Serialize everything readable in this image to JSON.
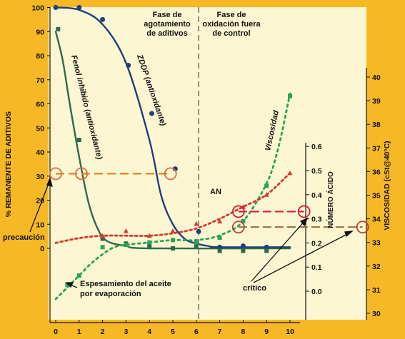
{
  "chart_data": {
    "type": "scatter",
    "x": {
      "ticks": [
        0,
        1,
        2,
        3,
        4,
        5,
        6,
        7,
        8,
        9,
        10
      ],
      "range": [
        0,
        10.5
      ]
    },
    "y_left": {
      "title": "% REMANENTE DE ADITIVOS",
      "ticks": [
        0,
        10,
        20,
        30,
        40,
        50,
        60,
        70,
        80,
        90,
        100
      ],
      "range": [
        -20,
        100
      ]
    },
    "y_right_viscosity": {
      "title": "VISCOSIDAD (cSt@40°C)",
      "ticks": [
        30,
        31,
        32,
        33,
        34,
        35,
        36,
        37,
        38,
        39,
        40
      ],
      "range": [
        30,
        41
      ]
    },
    "y_right_acid": {
      "title": "NÚMERO ÁCIDO",
      "ticks": [
        "0.0",
        "0.1",
        "0.2",
        "0.3",
        "0.4",
        "0.5",
        "0.6"
      ],
      "range": [
        -0.05,
        0.6
      ]
    },
    "phases": {
      "left": "Fase de\nagotamiento\nde aditivos",
      "right": "Fase de\noxidación fuera\nde control",
      "boundary_x": 6.1
    },
    "series": [
      {
        "name": "ZDDP (antioxidante)",
        "color": "#1f3e7a",
        "points": [
          [
            0,
            100
          ],
          [
            1,
            100
          ],
          [
            2,
            95
          ],
          [
            3.1,
            76
          ],
          [
            4.1,
            56
          ],
          [
            5.1,
            33
          ],
          [
            6.1,
            7
          ],
          [
            7,
            0.5
          ],
          [
            8,
            1
          ],
          [
            9,
            0.5
          ]
        ],
        "curve": [
          [
            0,
            100
          ],
          [
            1,
            99
          ],
          [
            2,
            93
          ],
          [
            3,
            77
          ],
          [
            4,
            45
          ],
          [
            4.5,
            22
          ],
          [
            5,
            10
          ],
          [
            5.5,
            4
          ],
          [
            6,
            2
          ],
          [
            6.5,
            1
          ],
          [
            7,
            0.5
          ],
          [
            10,
            0.5
          ]
        ]
      },
      {
        "name": "Fenol inhibido (antioxidante)",
        "color": "#2c6a4c",
        "points": [
          [
            0.1,
            91
          ],
          [
            1,
            45
          ],
          [
            2,
            4
          ],
          [
            3,
            2
          ],
          [
            4,
            1
          ],
          [
            5,
            0
          ],
          [
            6,
            1
          ],
          [
            7,
            -1
          ],
          [
            8,
            -1
          ],
          [
            9,
            -1
          ]
        ],
        "curve": [
          [
            0,
            90
          ],
          [
            0.3,
            78
          ],
          [
            0.6,
            60
          ],
          [
            1,
            38
          ],
          [
            1.4,
            19
          ],
          [
            1.8,
            8
          ],
          [
            2.2,
            3
          ],
          [
            3,
            1
          ],
          [
            4,
            0
          ],
          [
            10,
            0
          ]
        ]
      },
      {
        "name": "Viscosidad",
        "color": "#2aa356",
        "axis": "viscosity",
        "points": [
          [
            0.5,
            31.2
          ],
          [
            1,
            31.6
          ],
          [
            2,
            32.8
          ],
          [
            3,
            32.9
          ],
          [
            4,
            33.0
          ],
          [
            5,
            33.1
          ],
          [
            6,
            33.0
          ],
          [
            7,
            33.2
          ],
          [
            8,
            33.9
          ],
          [
            9,
            35.4
          ],
          [
            10,
            39.2
          ]
        ],
        "curve": [
          [
            0,
            30.6
          ],
          [
            0.5,
            31.1
          ],
          [
            1,
            31.6
          ],
          [
            1.5,
            32.1
          ],
          [
            2,
            32.5
          ],
          [
            2.5,
            32.8
          ],
          [
            3,
            32.9
          ],
          [
            4,
            33.0
          ],
          [
            5,
            33.1
          ],
          [
            6,
            33.1
          ],
          [
            7,
            33.3
          ],
          [
            8,
            33.9
          ],
          [
            9,
            35.5
          ],
          [
            9.5,
            37.0
          ],
          [
            10,
            39.3
          ]
        ]
      },
      {
        "name": "AN",
        "color": "#d33a2c",
        "axis": "acid",
        "points": [
          [
            2,
            0.23
          ],
          [
            3,
            0.25
          ],
          [
            4,
            0.23
          ],
          [
            5,
            0.25
          ],
          [
            6,
            0.28
          ],
          [
            7,
            0.29
          ],
          [
            8,
            0.35
          ],
          [
            9,
            0.4
          ],
          [
            10,
            0.49
          ]
        ],
        "curve": [
          [
            0,
            0.2
          ],
          [
            1,
            0.22
          ],
          [
            2,
            0.23
          ],
          [
            3,
            0.23
          ],
          [
            4,
            0.23
          ],
          [
            5,
            0.24
          ],
          [
            6,
            0.26
          ],
          [
            7,
            0.3
          ],
          [
            8,
            0.35
          ],
          [
            9,
            0.4
          ],
          [
            10,
            0.49
          ]
        ]
      }
    ],
    "markers": {
      "precaution_level": 31,
      "precaution_x": [
        0,
        1.1,
        4.9
      ],
      "critical_acid": 0.33,
      "critical_acid_x": [
        7.8,
        10.6
      ],
      "critical_visc": 33.65,
      "critical_visc_x": [
        7.8,
        13.1
      ]
    },
    "annotations": {
      "viscosity_label": "Viscosidad",
      "zddp_label": "ZDDP (antioxidante)",
      "fenol_label": "Fenol inhibido (antioxidante)",
      "an_label": "AN",
      "precaution": "precaución",
      "critical": "crítico",
      "thickening": "Espesamiento del aceite\npor evaporación"
    }
  },
  "colors": {
    "background": "#f7b825",
    "plot_bg": "#fcf6d3",
    "dashed_orange": "#e67e22",
    "dashed_red": "#d81b43",
    "dashed_brown": "#9c6a3a"
  }
}
